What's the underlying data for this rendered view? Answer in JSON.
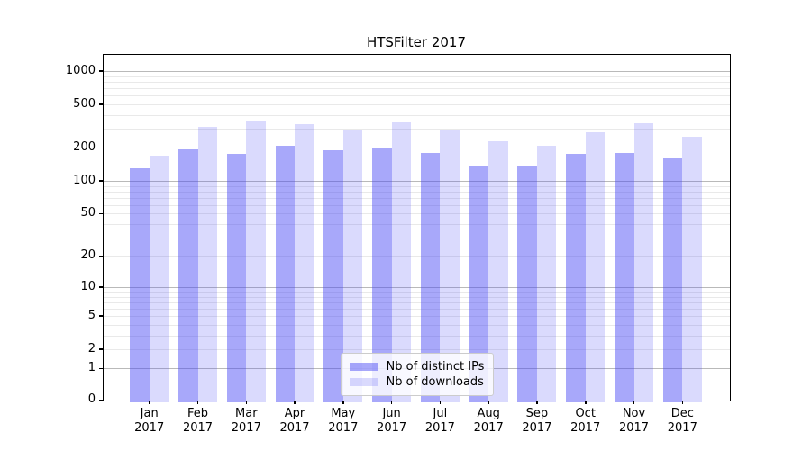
{
  "figure": {
    "background_color": "#ffffff",
    "spine_color": "#000000",
    "major_grid_color": "#b9b9b9",
    "minor_grid_color": "#e9e9e9"
  },
  "chart_data": {
    "type": "bar",
    "title": "HTSFilter 2017",
    "categories": [
      "Jan 2017",
      "Feb 2017",
      "Mar 2017",
      "Apr 2017",
      "May 2017",
      "Jun 2017",
      "Jul 2017",
      "Aug 2017",
      "Sep 2017",
      "Oct 2017",
      "Nov 2017",
      "Dec 2017"
    ],
    "series": [
      {
        "name": "Nb of distinct IPs",
        "values": [
          130,
          195,
          175,
          210,
          190,
          200,
          180,
          135,
          135,
          175,
          180,
          160
        ],
        "fill": "rgba(70,70,245,0.47)",
        "hex_on_white": "#a8a8f7"
      },
      {
        "name": "Nb of downloads",
        "values": [
          170,
          310,
          350,
          330,
          290,
          340,
          295,
          230,
          210,
          280,
          335,
          255
        ],
        "fill": "rgba(70,70,245,0.20)",
        "hex_on_white": "#dadafb"
      }
    ],
    "xlabel": "",
    "ylabel": "",
    "yscale": "log1p",
    "y_tick_labels": [
      "1000",
      "500",
      "200",
      "100",
      "50",
      "20",
      "10",
      "5",
      "2",
      "1",
      "0"
    ],
    "y_tick_values": [
      1000,
      500,
      200,
      100,
      50,
      20,
      10,
      5,
      2,
      1,
      0
    ],
    "minor_grid_values": [
      2,
      3,
      4,
      5,
      6,
      7,
      8,
      9,
      20,
      30,
      40,
      50,
      60,
      70,
      80,
      90,
      200,
      300,
      400,
      500,
      600,
      700,
      800,
      900
    ],
    "major_grid_values": [
      1,
      10,
      100,
      1000
    ],
    "ylim": [
      0,
      1400
    ],
    "grid": "both",
    "legend_position": "lower center"
  }
}
